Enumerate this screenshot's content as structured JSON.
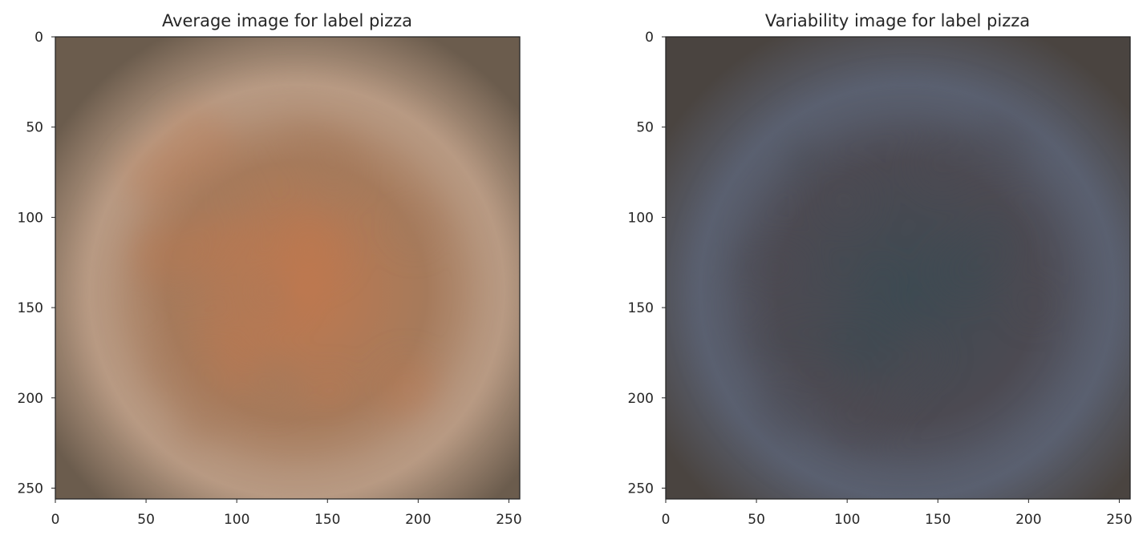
{
  "chart_data": [
    {
      "type": "heatmap",
      "title": "Average image for label pizza",
      "xlabel": "",
      "ylabel": "",
      "xlim": [
        0,
        256
      ],
      "ylim": [
        256,
        0
      ],
      "x_ticks": [
        0,
        50,
        100,
        150,
        200,
        250
      ],
      "y_ticks": [
        0,
        50,
        100,
        150,
        200,
        250
      ],
      "grid": false,
      "image": {
        "edge_color": "#6b5c4d",
        "mid_color": "#a67a5b",
        "center_color": "#c0784e",
        "ring_color": "#b89a83"
      }
    },
    {
      "type": "heatmap",
      "title": "Variability image for label pizza",
      "xlabel": "",
      "ylabel": "",
      "xlim": [
        0,
        256
      ],
      "ylim": [
        256,
        0
      ],
      "x_ticks": [
        0,
        50,
        100,
        150,
        200,
        250
      ],
      "y_ticks": [
        0,
        50,
        100,
        150,
        200,
        250
      ],
      "grid": false,
      "image": {
        "edge_color": "#4a4440",
        "mid_color": "#4c4a52",
        "center_color": "#3e4a52",
        "ring_color": "#5a6070"
      }
    }
  ]
}
